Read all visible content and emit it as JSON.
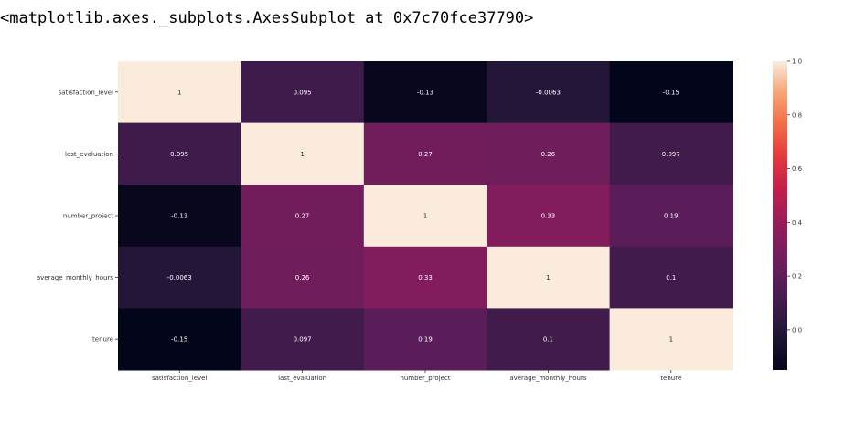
{
  "output": {
    "repr": "<matplotlib.axes._subplots.AxesSubplot at 0x7c70fce37790>"
  },
  "chart_data": {
    "type": "heatmap",
    "title": "",
    "rows": [
      "satisfaction_level",
      "last_evaluation",
      "number_project",
      "average_monthly_hours",
      "tenure"
    ],
    "columns": [
      "satisfaction_level",
      "last_evaluation",
      "number_project",
      "average_monthly_hours",
      "tenure"
    ],
    "values": [
      [
        1,
        0.095,
        -0.13,
        -0.0063,
        -0.15
      ],
      [
        0.095,
        1,
        0.27,
        0.26,
        0.097
      ],
      [
        -0.13,
        0.27,
        1,
        0.33,
        0.19
      ],
      [
        -0.0063,
        0.26,
        0.33,
        1,
        0.1
      ],
      [
        -0.15,
        0.097,
        0.19,
        0.1,
        1
      ]
    ],
    "value_labels": [
      [
        "1",
        "0.095",
        "-0.13",
        "-0.0063",
        "-0.15"
      ],
      [
        "0.095",
        "1",
        "0.27",
        "0.26",
        "0.097"
      ],
      [
        "-0.13",
        "0.27",
        "1",
        "0.33",
        "0.19"
      ],
      [
        "-0.0063",
        "0.26",
        "0.33",
        "1",
        "0.1"
      ],
      [
        "-0.15",
        "0.097",
        "0.19",
        "0.1",
        "1"
      ]
    ],
    "colorbar": {
      "range": [
        -0.15,
        1
      ],
      "ticks": [
        0.0,
        0.2,
        0.4,
        0.6,
        0.8,
        1.0
      ],
      "tick_labels": [
        "0.0",
        "0.2",
        "0.4",
        "0.6",
        "0.8",
        "1.0"
      ],
      "colormap": "rocket"
    }
  }
}
